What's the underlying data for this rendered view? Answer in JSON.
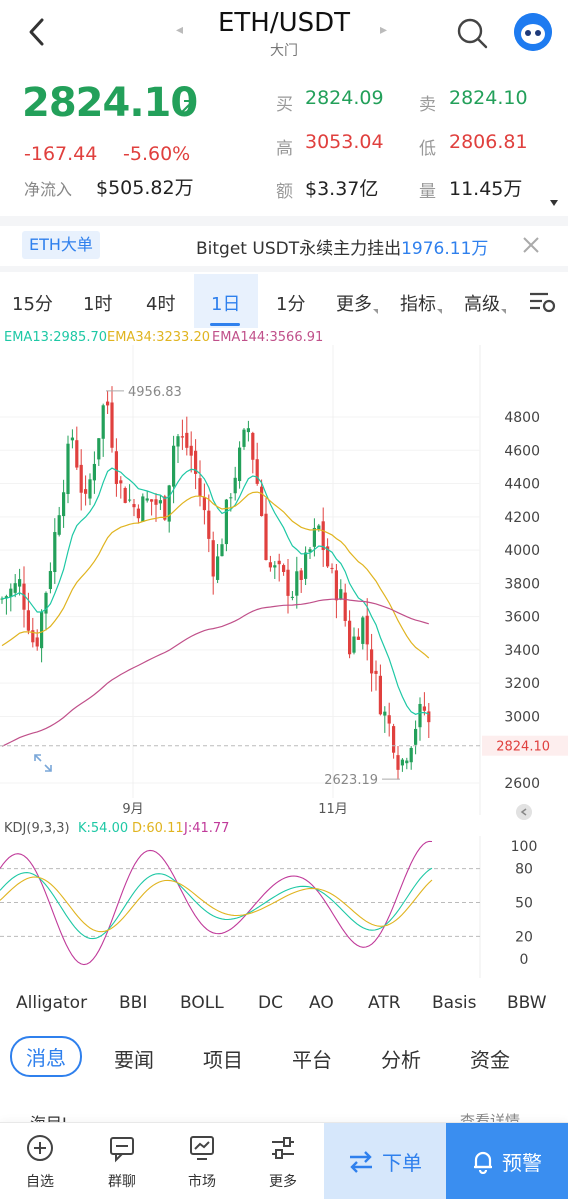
{
  "header": {
    "title": "ETH/USDT",
    "subtitle": "大门"
  },
  "ticker": {
    "last_price": "2824.10",
    "change": "-167.44",
    "change_pct": "-5.60%",
    "inflow_label": "净流入",
    "inflow_value": "$505.82万",
    "bid_label": "买",
    "bid_value": "2824.09",
    "ask_label": "卖",
    "ask_value": "2824.10",
    "high_label": "高",
    "high_value": "3053.04",
    "low_label": "低",
    "low_value": "2806.81",
    "amount_label": "额",
    "amount_value": "$3.37亿",
    "volume_label": "量",
    "volume_value": "11.45万"
  },
  "banner": {
    "tag": "ETH大单",
    "text": "Bitget USDT永续主力挂出",
    "amount": "1976.11万"
  },
  "intervals": {
    "items": [
      "15分",
      "1时",
      "4时",
      "1日",
      "1分",
      "更多",
      "指标",
      "高级"
    ],
    "active": "1日"
  },
  "ema_legend": {
    "ema13": "EMA13:2985.70",
    "ema34": "EMA34:3233.20",
    "ema144": "EMA144:3566.91"
  },
  "kdj_legend": {
    "name": "KDJ(9,3,3)",
    "k": "K:54.00",
    "d": "D:60.11",
    "j": "J:41.77"
  },
  "colors": {
    "up": "#23a05a",
    "down": "#e0403e",
    "accent": "#2f80ed",
    "ema13": "#1ec8a5",
    "ema34": "#e0b420",
    "ema144": "#c0508a",
    "kdj_k": "#1ec8a5",
    "kdj_d": "#e0b420",
    "kdj_j": "#c03a9a"
  },
  "chart_data": {
    "type": "candlestick",
    "y_ticks": [
      4800,
      4600,
      4400,
      4200,
      4000,
      3800,
      3600,
      3400,
      3200,
      3000,
      2600
    ],
    "ylim": [
      2530,
      5010
    ],
    "x_labels": [
      "9月",
      "11月"
    ],
    "last_price_label": "2824.10",
    "high_marker": "4956.83",
    "low_marker": "2623.19",
    "kdj_ticks": [
      100,
      80,
      50,
      20,
      0
    ]
  },
  "indicator_list": [
    "Alligator",
    "BBI",
    "BOLL",
    "DC",
    "AO",
    "ATR",
    "Basis",
    "BBW"
  ],
  "news_tabs": {
    "items": [
      "消息",
      "要闻",
      "项目",
      "平台",
      "分析",
      "资金"
    ],
    "active": "消息"
  },
  "peek": {
    "left": "海目L...",
    "right": "查看详情"
  },
  "bottom_nav": {
    "items": [
      {
        "label": "自选",
        "icon": "plus-circle-icon"
      },
      {
        "label": "群聊",
        "icon": "chat-icon"
      },
      {
        "label": "市场",
        "icon": "market-chart-icon"
      },
      {
        "label": "更多",
        "icon": "more-sliders-icon"
      }
    ],
    "order_label": "下单",
    "alert_label": "预警"
  }
}
